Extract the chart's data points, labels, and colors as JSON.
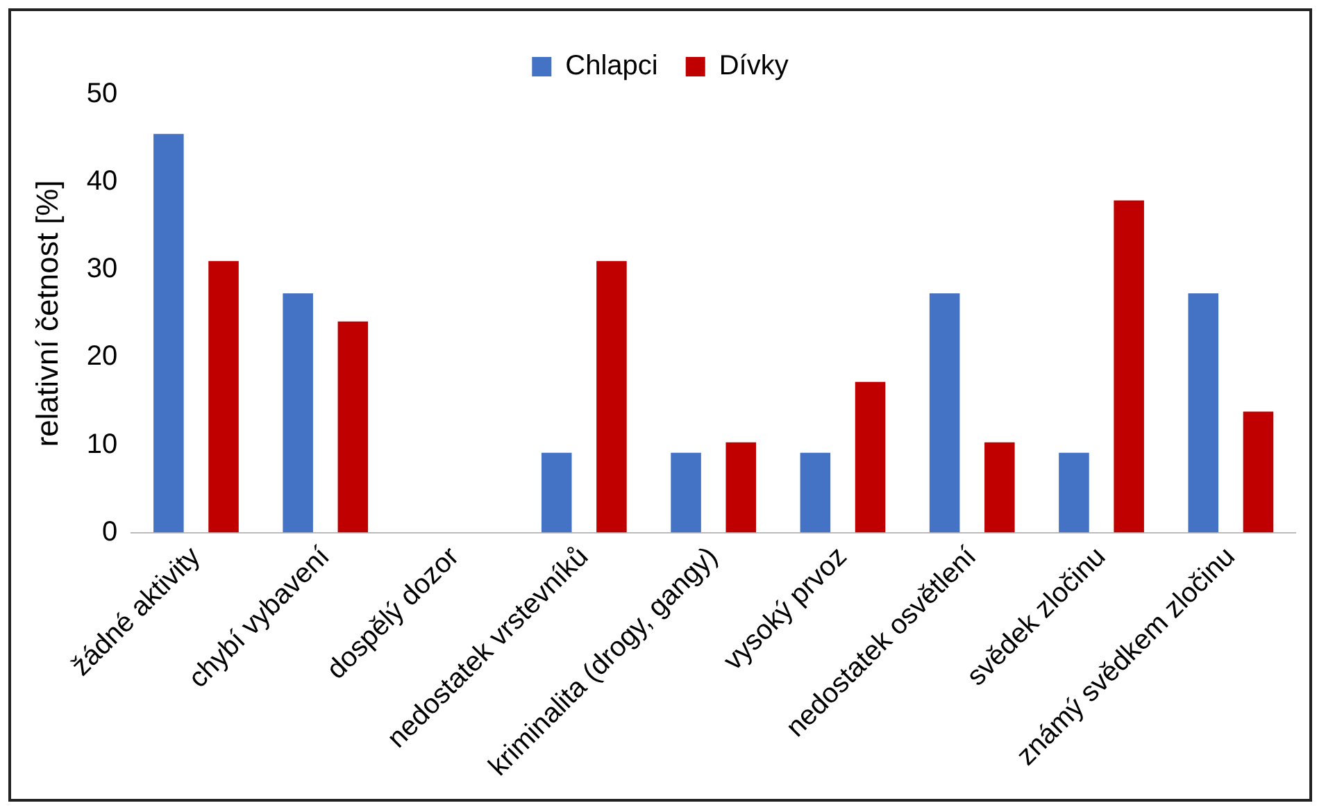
{
  "chart_data": {
    "type": "bar",
    "ylabel": "relativní četnost [%]",
    "categories": [
      "žádné aktivity",
      "chybí vybavení",
      "dospělý dozor",
      "nedostatek vrstevníků",
      "kriminalita (drogy, gangy)",
      "vysoký prvoz",
      "nedostatek osvětlení",
      "svědek zločinu",
      "známý svědkem zločinu"
    ],
    "series": [
      {
        "name": "Chlapci",
        "color": "#4472c4",
        "values": [
          45.5,
          27.3,
          0,
          9.1,
          9.1,
          9.1,
          27.3,
          9.1,
          27.3
        ]
      },
      {
        "name": "Dívky",
        "color": "#c00000",
        "values": [
          31.0,
          24.1,
          0,
          31.0,
          10.3,
          17.2,
          10.3,
          37.9,
          13.8
        ]
      }
    ],
    "ylim": [
      0,
      50
    ],
    "yticks": [
      0,
      10,
      20,
      30,
      40,
      50
    ],
    "grid": false,
    "legend": "top"
  }
}
